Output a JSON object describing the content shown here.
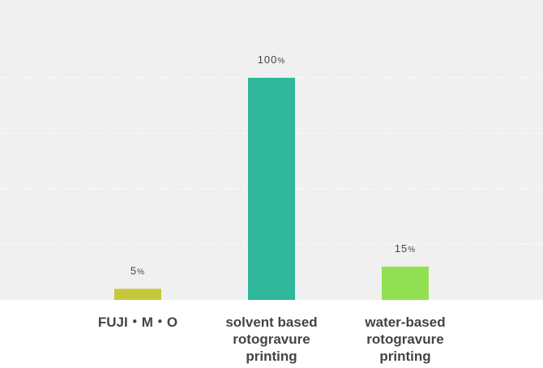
{
  "chart_data": {
    "type": "bar",
    "categories": [
      "FUJI・M・O",
      "solvent based rotogravure printing",
      "water-based rotogravure printing"
    ],
    "values": [
      5,
      100,
      15
    ],
    "value_labels": [
      "5%",
      "100%",
      "15%"
    ],
    "colors": [
      "#c5c83a",
      "#2fb89b",
      "#92e052"
    ],
    "ylim": [
      0,
      135
    ],
    "yticks": [
      25,
      50,
      75,
      100
    ],
    "grid": true
  }
}
